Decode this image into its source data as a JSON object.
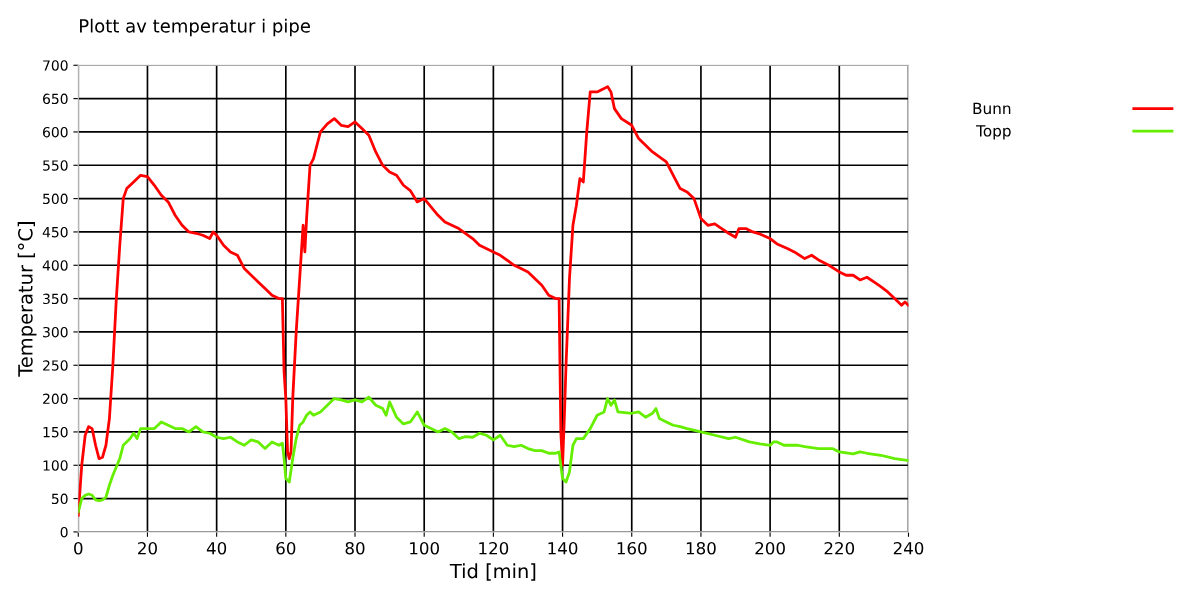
{
  "chart_data": {
    "type": "line",
    "title": "Plott av temperatur i pipe",
    "xlabel": "Tid [min]",
    "ylabel": "Temperatur [°C]",
    "xlim": [
      0,
      240
    ],
    "xticks": [
      0,
      20,
      40,
      60,
      80,
      100,
      120,
      140,
      160,
      180,
      200,
      220,
      240
    ],
    "ylim": [
      0,
      700
    ],
    "yticks": [
      0,
      50,
      100,
      150,
      200,
      250,
      300,
      350,
      400,
      450,
      500,
      550,
      600,
      650,
      700
    ],
    "grid": true,
    "legend": "top right",
    "marker": "none",
    "line_style": "solid",
    "series": [
      {
        "name": "Bunn",
        "color": "#ff0000",
        "x": [
          0,
          1,
          2,
          3,
          4,
          5,
          6,
          7,
          8,
          9,
          10,
          11,
          12,
          13,
          14,
          16,
          18,
          20,
          22,
          24,
          26,
          28,
          30,
          32,
          34,
          36,
          38,
          39,
          40,
          42,
          44,
          46,
          48,
          50,
          52,
          54,
          56,
          58,
          59,
          59.5,
          60,
          60.5,
          61,
          61.5,
          62,
          63,
          64,
          65,
          65.5,
          66,
          67,
          68,
          69,
          70,
          72,
          74,
          76,
          78,
          80,
          82,
          84,
          86,
          88,
          90,
          92,
          94,
          96,
          98,
          100,
          104,
          106,
          110,
          114,
          116,
          120,
          122,
          126,
          128,
          130,
          134,
          136,
          138,
          139,
          139.5,
          140,
          140.5,
          141,
          142,
          143,
          144,
          145,
          146,
          147,
          148,
          150,
          152,
          153,
          154,
          155,
          157,
          160,
          162,
          164,
          166,
          170,
          172,
          174,
          176,
          178,
          180,
          182,
          184,
          186,
          188,
          190,
          191,
          193,
          195,
          197,
          200,
          202,
          205,
          207,
          210,
          212,
          214,
          217,
          220,
          222,
          224,
          226,
          228,
          230,
          232,
          234,
          236,
          238,
          239,
          240
        ],
        "values": [
          25,
          100,
          145,
          158,
          155,
          130,
          110,
          112,
          130,
          170,
          250,
          350,
          430,
          500,
          515,
          525,
          535,
          533,
          520,
          505,
          495,
          475,
          460,
          450,
          448,
          445,
          440,
          450,
          445,
          430,
          420,
          415,
          395,
          385,
          375,
          365,
          355,
          350,
          350,
          240,
          200,
          120,
          110,
          120,
          200,
          300,
          380,
          460,
          420,
          470,
          550,
          560,
          580,
          600,
          612,
          620,
          610,
          608,
          615,
          605,
          595,
          570,
          550,
          540,
          535,
          520,
          512,
          495,
          500,
          475,
          465,
          455,
          440,
          430,
          420,
          415,
          400,
          395,
          390,
          370,
          355,
          350,
          350,
          150,
          100,
          170,
          250,
          380,
          460,
          490,
          530,
          525,
          600,
          660,
          660,
          665,
          668,
          660,
          635,
          620,
          610,
          590,
          580,
          570,
          555,
          535,
          515,
          510,
          500,
          470,
          460,
          462,
          455,
          448,
          442,
          455,
          455,
          450,
          447,
          440,
          432,
          425,
          420,
          410,
          415,
          408,
          400,
          390,
          385,
          385,
          378,
          382,
          375,
          368,
          360,
          350,
          340,
          345,
          340
        ]
      },
      {
        "name": "Topp",
        "color": "#66ee00",
        "x": [
          0,
          1,
          2,
          3,
          4,
          5,
          6,
          7,
          8,
          9,
          10,
          12,
          13,
          15,
          16,
          17,
          18,
          20,
          22,
          24,
          26,
          28,
          30,
          32,
          34,
          36,
          38,
          40,
          42,
          44,
          46,
          48,
          50,
          52,
          54,
          56,
          58,
          59,
          59.5,
          60,
          61,
          62,
          63,
          64,
          65,
          66,
          67,
          68,
          70,
          72,
          74,
          76,
          78,
          80,
          82,
          84,
          86,
          88,
          89,
          90,
          92,
          94,
          96,
          98,
          100,
          102,
          104,
          106,
          108,
          110,
          112,
          114,
          116,
          118,
          120,
          122,
          124,
          126,
          128,
          130,
          132,
          134,
          136,
          138,
          139,
          140,
          141,
          142,
          143,
          144,
          146,
          148,
          150,
          152,
          153,
          154,
          155,
          156,
          160,
          162,
          164,
          166,
          167,
          168,
          170,
          172,
          174,
          176,
          180,
          184,
          188,
          190,
          194,
          197,
          200,
          201,
          202,
          204,
          208,
          210,
          214,
          218,
          220,
          224,
          226,
          228,
          232,
          236,
          240
        ],
        "values": [
          30,
          50,
          55,
          57,
          55,
          48,
          47,
          48,
          52,
          70,
          85,
          110,
          130,
          140,
          148,
          140,
          155,
          155,
          155,
          165,
          160,
          155,
          155,
          150,
          158,
          150,
          148,
          142,
          140,
          142,
          135,
          130,
          138,
          135,
          125,
          135,
          130,
          133,
          110,
          80,
          75,
          110,
          140,
          160,
          165,
          175,
          180,
          175,
          180,
          190,
          200,
          198,
          195,
          198,
          195,
          202,
          190,
          185,
          175,
          195,
          172,
          162,
          165,
          180,
          160,
          155,
          150,
          155,
          150,
          140,
          143,
          142,
          148,
          145,
          138,
          145,
          130,
          128,
          130,
          125,
          122,
          122,
          118,
          118,
          120,
          80,
          75,
          90,
          130,
          140,
          140,
          155,
          175,
          180,
          200,
          190,
          198,
          180,
          178,
          180,
          172,
          178,
          185,
          170,
          165,
          160,
          158,
          155,
          150,
          145,
          140,
          142,
          135,
          132,
          130,
          135,
          135,
          130,
          130,
          128,
          125,
          125,
          120,
          117,
          120,
          118,
          115,
          110,
          107
        ]
      }
    ]
  }
}
